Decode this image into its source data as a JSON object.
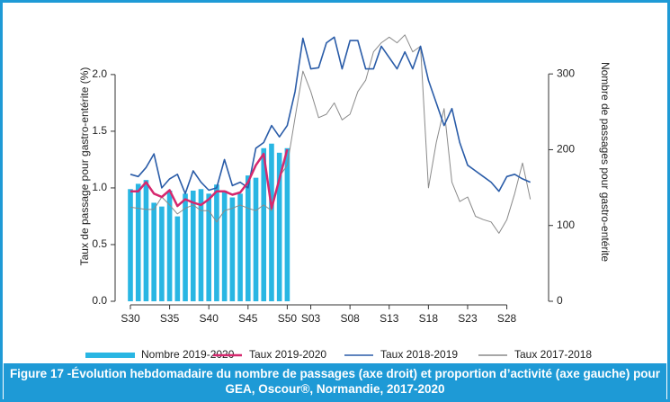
{
  "chart_data": {
    "type": "bar_line",
    "title": "Figure 17 -Évolution hebdomadaire du nombre de passages (axe droit) et proportion d’activité (axe gauche) pour GEA, Oscour®, Normandie, 2017-2020",
    "y_label": "Taux de passage pour gastro-entérite (%)",
    "y2_label": "Nombre de passages pour gastro-entérite",
    "categories": [
      "S30",
      null,
      null,
      null,
      null,
      "S35",
      null,
      null,
      null,
      null,
      "S40",
      null,
      null,
      null,
      null,
      "S45",
      null,
      null,
      null,
      null,
      "S50",
      null,
      null,
      "S03",
      null,
      null,
      null,
      null,
      "S08",
      null,
      null,
      null,
      null,
      "S13",
      null,
      null,
      null,
      null,
      "S18",
      null,
      null,
      null,
      null,
      "S23",
      null,
      null,
      null,
      null,
      "S28",
      null,
      null,
      null
    ],
    "ylim": [
      0,
      2.38
    ],
    "yticks": [
      {
        "value": 0,
        "label": "0.0"
      },
      {
        "value": 0.5,
        "label": "0.5"
      },
      {
        "value": 1,
        "label": "1.0"
      },
      {
        "value": 1.5,
        "label": "1.5"
      },
      {
        "value": 2,
        "label": "2.0"
      }
    ],
    "y2lim": [
      0,
      356
    ],
    "y2ticks": [
      0,
      100,
      200,
      300
    ],
    "series": [
      {
        "name": "Nombre 2019-2020",
        "kind": "bar",
        "axis": "y2",
        "color": "#29b6e3",
        "values": [
          148,
          155,
          160,
          130,
          125,
          146,
          112,
          142,
          146,
          148,
          142,
          154,
          146,
          137,
          142,
          166,
          163,
          202,
          208,
          196,
          202,
          null,
          null,
          null,
          null,
          null,
          null,
          null,
          null,
          null,
          null,
          null,
          null,
          null,
          null,
          null,
          null,
          null,
          null,
          null,
          null,
          null,
          null,
          null,
          null,
          null,
          null,
          null,
          null,
          null,
          null,
          null
        ]
      },
      {
        "name": "Taux 2019-2020",
        "kind": "line",
        "color": "#d6286e",
        "values": [
          0.97,
          0.97,
          1.05,
          0.95,
          0.92,
          0.98,
          0.84,
          0.9,
          0.87,
          0.85,
          0.9,
          0.97,
          0.97,
          0.94,
          0.96,
          1.05,
          1.2,
          1.3,
          0.82,
          1.08,
          1.34,
          null,
          null,
          null,
          null,
          null,
          null,
          null,
          null,
          null,
          null,
          null,
          null,
          null,
          null,
          null,
          null,
          null,
          null,
          null,
          null,
          null,
          null,
          null,
          null,
          null,
          null,
          null,
          null,
          null,
          null,
          null
        ]
      },
      {
        "name": "Taux 2018-2019",
        "kind": "line",
        "color": "#2a5ca8",
        "values": [
          1.12,
          1.1,
          1.18,
          1.3,
          1.0,
          1.08,
          1.12,
          0.95,
          1.15,
          1.05,
          0.98,
          1.0,
          1.25,
          1.02,
          1.05,
          1.0,
          1.35,
          1.4,
          1.55,
          1.45,
          1.55,
          1.85,
          2.32,
          2.05,
          2.06,
          2.28,
          2.33,
          2.05,
          2.3,
          2.3,
          2.05,
          2.05,
          2.25,
          2.15,
          2.05,
          2.2,
          2.05,
          2.25,
          1.95,
          1.75,
          1.55,
          1.7,
          1.4,
          1.2,
          1.15,
          1.1,
          1.05,
          0.97,
          1.1,
          1.12,
          1.08,
          1.05
        ]
      },
      {
        "name": "Taux 2017-2018",
        "kind": "line",
        "color": "#8a8a8a",
        "values": [
          0.83,
          0.82,
          0.81,
          0.81,
          0.92,
          0.85,
          0.77,
          0.82,
          0.85,
          0.8,
          0.8,
          0.7,
          0.8,
          0.82,
          0.85,
          0.82,
          0.8,
          0.85,
          0.8,
          1.1,
          1.2,
          1.62,
          2.03,
          1.85,
          1.62,
          1.65,
          1.75,
          1.6,
          1.65,
          1.85,
          1.95,
          2.2,
          2.28,
          2.33,
          2.28,
          2.35,
          2.2,
          2.25,
          1.0,
          1.4,
          1.7,
          1.05,
          0.88,
          0.92,
          0.75,
          0.72,
          0.7,
          0.6,
          0.72,
          0.95,
          1.22,
          0.9
        ]
      }
    ]
  }
}
